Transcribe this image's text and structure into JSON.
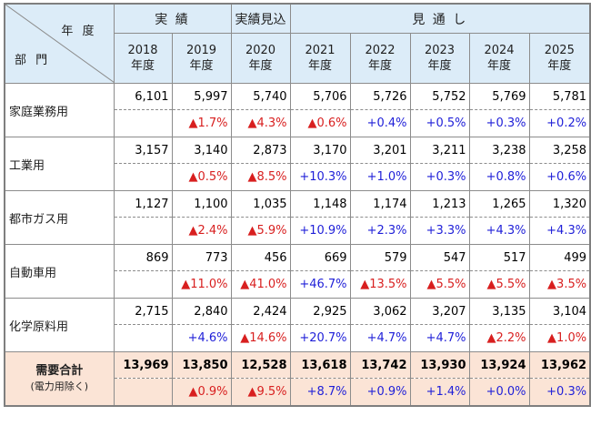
{
  "header": {
    "corner_top": "年 度",
    "corner_bottom": "部 門",
    "groups": [
      "実 績",
      "実績見込",
      "見 通 し"
    ],
    "years": [
      {
        "year": "2018",
        "label": "年度"
      },
      {
        "year": "2019",
        "label": "年度"
      },
      {
        "year": "2020",
        "label": "年度"
      },
      {
        "year": "2021",
        "label": "年度"
      },
      {
        "year": "2022",
        "label": "年度"
      },
      {
        "year": "2023",
        "label": "年度"
      },
      {
        "year": "2024",
        "label": "年度"
      },
      {
        "year": "2025",
        "label": "年度"
      }
    ]
  },
  "rows": [
    {
      "name": "家庭業務用",
      "values": [
        "6,101",
        "5,997",
        "5,740",
        "5,706",
        "5,726",
        "5,752",
        "5,769",
        "5,781"
      ],
      "changes": [
        "",
        "▲1.7%",
        "▲4.3%",
        "▲0.6%",
        "+0.4%",
        "+0.5%",
        "+0.3%",
        "+0.2%"
      ]
    },
    {
      "name": "工業用",
      "values": [
        "3,157",
        "3,140",
        "2,873",
        "3,170",
        "3,201",
        "3,211",
        "3,238",
        "3,258"
      ],
      "changes": [
        "",
        "▲0.5%",
        "▲8.5%",
        "+10.3%",
        "+1.0%",
        "+0.3%",
        "+0.8%",
        "+0.6%"
      ]
    },
    {
      "name": "都市ガス用",
      "values": [
        "1,127",
        "1,100",
        "1,035",
        "1,148",
        "1,174",
        "1,213",
        "1,265",
        "1,320"
      ],
      "changes": [
        "",
        "▲2.4%",
        "▲5.9%",
        "+10.9%",
        "+2.3%",
        "+3.3%",
        "+4.3%",
        "+4.3%"
      ]
    },
    {
      "name": "自動車用",
      "values": [
        "869",
        "773",
        "456",
        "669",
        "579",
        "547",
        "517",
        "499"
      ],
      "changes": [
        "",
        "▲11.0%",
        "▲41.0%",
        "+46.7%",
        "▲13.5%",
        "▲5.5%",
        "▲5.5%",
        "▲3.5%"
      ]
    },
    {
      "name": "化学原料用",
      "values": [
        "2,715",
        "2,840",
        "2,424",
        "2,925",
        "3,062",
        "3,207",
        "3,135",
        "3,104"
      ],
      "changes": [
        "",
        "+4.6%",
        "▲14.6%",
        "+20.7%",
        "+4.7%",
        "+4.7%",
        "▲2.2%",
        "▲1.0%"
      ]
    }
  ],
  "total": {
    "name": "需要合計",
    "sub": "(電力用除く)",
    "values": [
      "13,969",
      "13,850",
      "12,528",
      "13,618",
      "13,742",
      "13,930",
      "13,924",
      "13,962"
    ],
    "changes": [
      "",
      "▲0.9%",
      "▲9.5%",
      "+8.7%",
      "+0.9%",
      "+1.4%",
      "+0.0%",
      "+0.3%"
    ]
  },
  "colors": {
    "header_bg": "#dcecf8",
    "total_bg": "#fbe4d6",
    "increase": "#1f1fd8",
    "decrease": "#d81f1f"
  }
}
